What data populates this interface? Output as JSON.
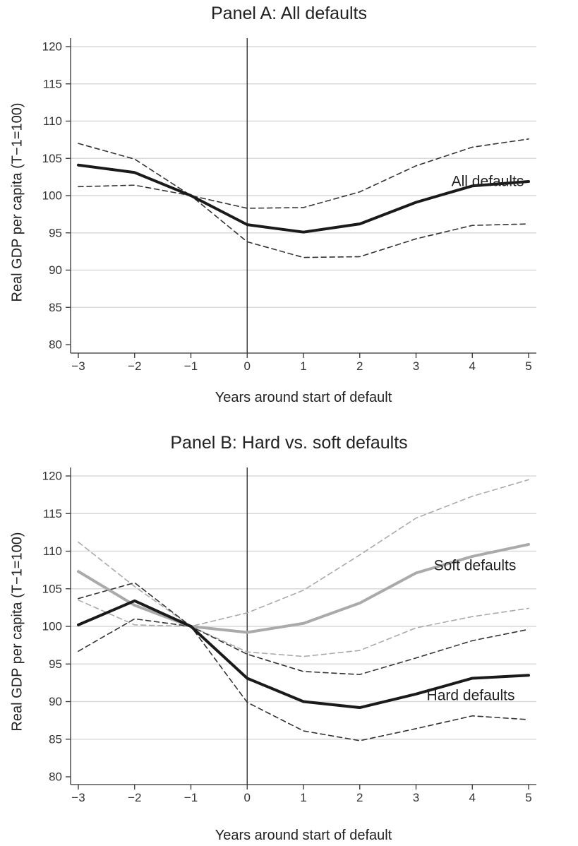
{
  "chart_data": [
    {
      "type": "line",
      "title": "Panel A: All defaults",
      "xlabel": "Years around start of default",
      "ylabel": "Real GDP per capita (T−1=100)",
      "x": [
        -3,
        -2,
        -1,
        0,
        1,
        2,
        3,
        4,
        5
      ],
      "x_tick_labels": [
        "−3",
        "−2",
        "−1",
        "0",
        "1",
        "2",
        "3",
        "4",
        "5"
      ],
      "y_ticks": [
        80,
        85,
        90,
        95,
        100,
        105,
        110,
        115,
        120
      ],
      "xlim": [
        -3,
        5
      ],
      "ylim": [
        80,
        120
      ],
      "grid": true,
      "vertical_line_at_x": 0,
      "series": [
        {
          "name": "All defaults",
          "label": "All defaults",
          "role": "estimate",
          "color": "#1a1a1a",
          "values": [
            104.1,
            103.1,
            100.0,
            96.1,
            95.1,
            96.2,
            99.1,
            101.3,
            101.9
          ]
        },
        {
          "role": "upper band",
          "color": "#333333",
          "values": [
            107.0,
            104.9,
            100.0,
            98.3,
            98.4,
            100.5,
            104.0,
            106.5,
            107.6
          ]
        },
        {
          "role": "lower band",
          "color": "#333333",
          "values": [
            101.2,
            101.4,
            100.0,
            93.8,
            91.7,
            91.8,
            94.2,
            96.0,
            96.2
          ]
        }
      ]
    },
    {
      "type": "line",
      "title": "Panel B: Hard vs. soft defaults",
      "xlabel": "Years around start of default",
      "ylabel": "Real GDP per capita (T−1=100)",
      "x": [
        -3,
        -2,
        -1,
        0,
        1,
        2,
        3,
        4,
        5
      ],
      "x_tick_labels": [
        "−3",
        "−2",
        "−1",
        "0",
        "1",
        "2",
        "3",
        "4",
        "5"
      ],
      "y_ticks": [
        80,
        85,
        90,
        95,
        100,
        105,
        110,
        115,
        120
      ],
      "xlim": [
        -3,
        5
      ],
      "ylim": [
        80,
        120
      ],
      "grid": true,
      "vertical_line_at_x": 0,
      "series": [
        {
          "name": "Soft defaults",
          "label": "Soft defaults",
          "role": "estimate",
          "color": "#aaaaaa",
          "values": [
            107.3,
            102.8,
            100.0,
            99.2,
            100.4,
            103.1,
            107.1,
            109.3,
            110.9
          ]
        },
        {
          "role": "soft upper band",
          "color": "#aaaaaa",
          "values": [
            111.2,
            105.3,
            100.0,
            101.8,
            104.8,
            109.5,
            114.4,
            117.3,
            119.5
          ]
        },
        {
          "role": "soft lower band",
          "color": "#aaaaaa",
          "values": [
            103.5,
            100.2,
            100.0,
            96.6,
            96.0,
            96.8,
            99.8,
            101.3,
            102.4
          ]
        },
        {
          "name": "Hard defaults",
          "label": "Hard defaults",
          "role": "estimate",
          "color": "#1a1a1a",
          "values": [
            100.2,
            103.4,
            100.0,
            93.1,
            90.0,
            89.2,
            91.0,
            93.1,
            93.5
          ]
        },
        {
          "role": "hard upper band",
          "color": "#333333",
          "values": [
            103.7,
            105.8,
            100.0,
            96.3,
            94.0,
            93.6,
            95.8,
            98.1,
            99.6
          ]
        },
        {
          "role": "hard lower band",
          "color": "#333333",
          "values": [
            96.7,
            101.0,
            100.0,
            89.9,
            86.1,
            84.8,
            86.4,
            88.1,
            87.6
          ]
        }
      ]
    }
  ]
}
